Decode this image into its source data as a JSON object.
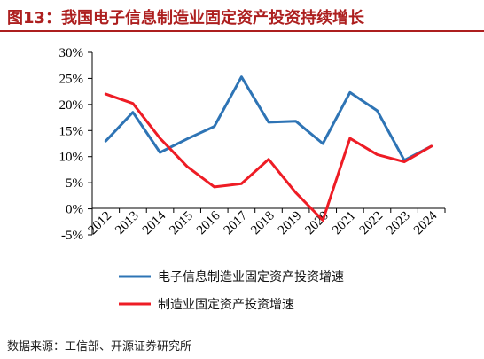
{
  "figure": {
    "title": "图13：我国电子信息制造业固定资产投资持续增长",
    "source": "数据来源：工信部、开源证券研究所"
  },
  "chart_data": {
    "type": "line",
    "title": "",
    "xlabel": "",
    "ylabel": "",
    "x": [
      "2012",
      "2013",
      "2014",
      "2015",
      "2016",
      "2017",
      "2018",
      "2019",
      "2020",
      "2021",
      "2022",
      "2023",
      "2024"
    ],
    "y_ticks": [
      "30%",
      "25%",
      "20%",
      "15%",
      "10%",
      "5%",
      "0%",
      "-5%"
    ],
    "ylim": [
      -5,
      30
    ],
    "grid": false,
    "legend_position": "bottom",
    "series": [
      {
        "name": "电子信息制造业固定资产投资增速",
        "color": "#2e74b5",
        "values": [
          13.0,
          18.5,
          10.8,
          13.4,
          15.8,
          25.3,
          16.6,
          16.8,
          12.5,
          22.3,
          18.8,
          9.3,
          12.0
        ]
      },
      {
        "name": "制造业固定资产投资增速",
        "color": "#ee1c25",
        "values": [
          22.0,
          20.2,
          13.5,
          8.1,
          4.2,
          4.8,
          9.5,
          3.1,
          -2.2,
          13.5,
          10.4,
          9.0,
          12.0
        ]
      }
    ]
  }
}
